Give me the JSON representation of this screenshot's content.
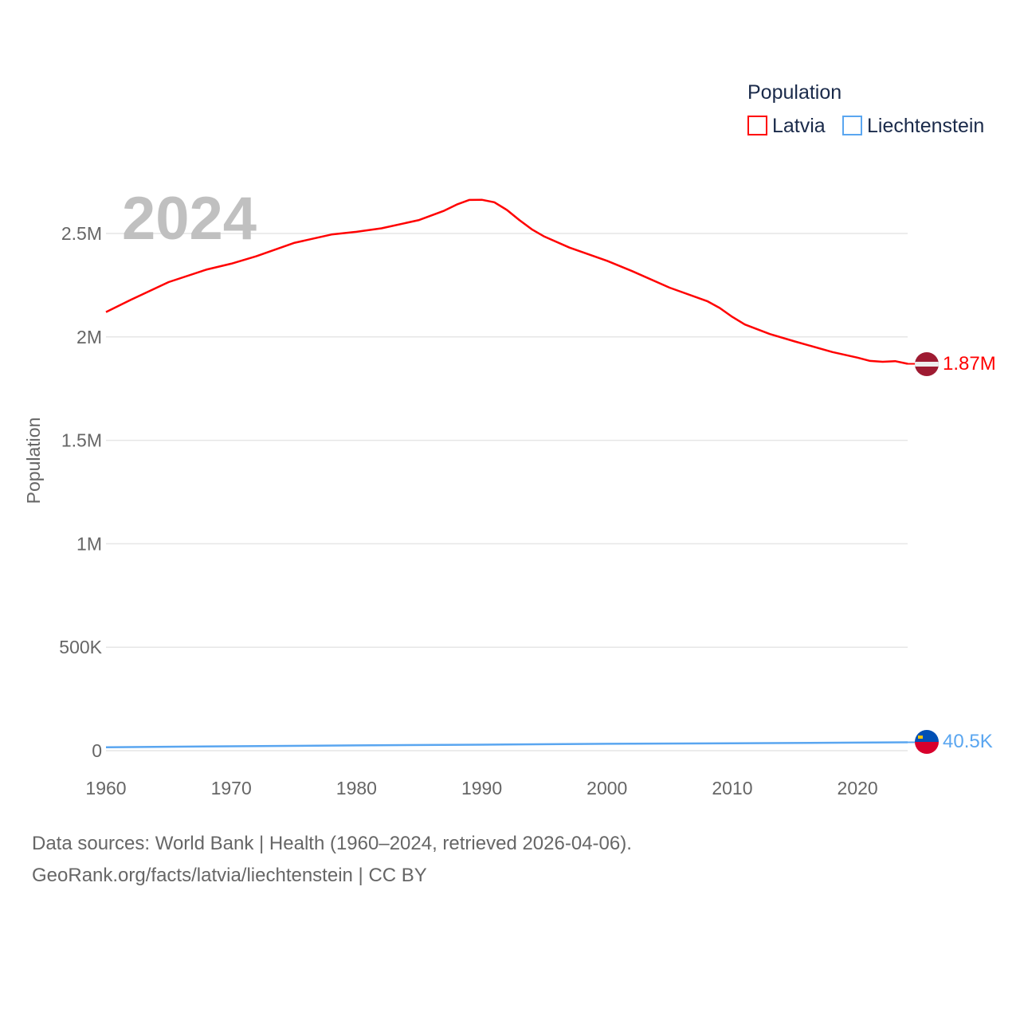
{
  "chart_data": {
    "type": "line",
    "legend_title": "Population",
    "legend_placement": "top-right",
    "ylabel": "Population",
    "xlabel": "",
    "year_watermark": "2024",
    "xlim": [
      1960,
      2024
    ],
    "ylim": [
      0,
      2500000
    ],
    "x_ticks": [
      1960,
      1970,
      1980,
      1990,
      2000,
      2010,
      2020
    ],
    "x_tick_labels": [
      "1960",
      "1970",
      "1980",
      "1990",
      "2000",
      "2010",
      "2020"
    ],
    "y_ticks": [
      0,
      500000,
      1000000,
      1500000,
      2000000,
      2500000
    ],
    "y_tick_labels": [
      "0",
      "500K",
      "1M",
      "1.5M",
      "2M",
      "2.5M"
    ],
    "grid": true,
    "series": [
      {
        "name": "Latvia",
        "color": "#ff0000",
        "end_label": "1.87M",
        "x": [
          1960,
          1962,
          1965,
          1968,
          1970,
          1972,
          1975,
          1978,
          1980,
          1982,
          1985,
          1987,
          1988,
          1989,
          1990,
          1991,
          1992,
          1993,
          1994,
          1995,
          1997,
          2000,
          2002,
          2005,
          2008,
          2009,
          2010,
          2011,
          2013,
          2015,
          2018,
          2020,
          2021,
          2022,
          2023,
          2024
        ],
        "values": [
          2120000,
          2180000,
          2265000,
          2325000,
          2354000,
          2390000,
          2454000,
          2495000,
          2508000,
          2525000,
          2565000,
          2610000,
          2640000,
          2662000,
          2663000,
          2651000,
          2614000,
          2565000,
          2520000,
          2485000,
          2432000,
          2368000,
          2318000,
          2238000,
          2173000,
          2140000,
          2097000,
          2060000,
          2014000,
          1978000,
          1927000,
          1900000,
          1884000,
          1880000,
          1883000,
          1870000
        ]
      },
      {
        "name": "Liechtenstein",
        "color": "#5aa6f0",
        "end_label": "40.5K",
        "x": [
          1960,
          1970,
          1980,
          1990,
          2000,
          2010,
          2020,
          2024
        ],
        "values": [
          16500,
          21000,
          25300,
          29000,
          33000,
          36000,
          38800,
          40500
        ]
      }
    ]
  },
  "footer": {
    "line1": "Data sources: World Bank | Health (1960–2024, retrieved 2026-04-06).",
    "line2": "GeoRank.org/facts/latvia/liechtenstein | CC BY"
  }
}
